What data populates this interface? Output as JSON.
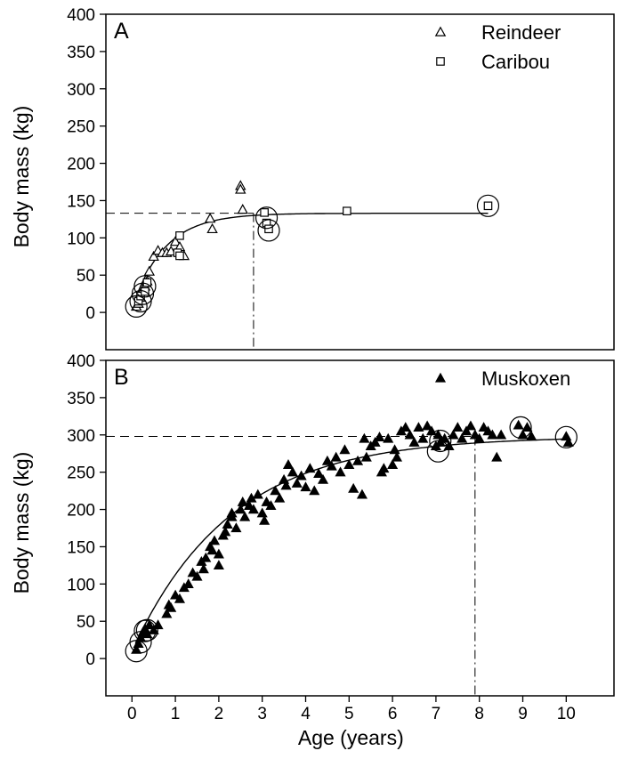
{
  "figure": {
    "background": "#ffffff",
    "ink": "#000000"
  },
  "chart_data": [
    {
      "panel_label": "A",
      "type": "scatter",
      "ylabel": "Body mass (kg)",
      "xlim": [
        -0.6,
        11.1
      ],
      "ylim": [
        -50,
        400
      ],
      "yticks": [
        0,
        50,
        100,
        150,
        200,
        250,
        300,
        350,
        400
      ],
      "legend_position": "top-right",
      "legend": [
        {
          "label": "Reindeer",
          "marker": "triangle-open"
        },
        {
          "label": "Caribou",
          "marker": "square-open"
        }
      ],
      "series": [
        {
          "name": "Reindeer",
          "marker": "triangle-open",
          "points": [
            [
              0.1,
              8
            ],
            [
              0.15,
              12
            ],
            [
              0.2,
              20
            ],
            [
              0.25,
              30
            ],
            [
              0.3,
              35
            ],
            [
              0.35,
              42
            ],
            [
              0.4,
              55
            ],
            [
              0.5,
              75
            ],
            [
              0.6,
              83
            ],
            [
              0.7,
              80
            ],
            [
              0.8,
              80
            ],
            [
              0.9,
              82
            ],
            [
              1.0,
              95
            ],
            [
              1.1,
              88
            ],
            [
              1.2,
              76
            ],
            [
              1.8,
              126
            ],
            [
              1.85,
              112
            ],
            [
              2.5,
              170
            ],
            [
              2.5,
              165
            ],
            [
              2.55,
              138
            ]
          ]
        },
        {
          "name": "Caribou",
          "marker": "square-open",
          "points": [
            [
              0.15,
              15
            ],
            [
              0.2,
              22
            ],
            [
              0.3,
              28
            ],
            [
              0.35,
              40
            ],
            [
              1.05,
              80
            ],
            [
              1.1,
              76
            ],
            [
              1.1,
              103
            ],
            [
              3.05,
              134
            ],
            [
              3.1,
              120
            ],
            [
              3.15,
              112
            ],
            [
              4.95,
              136
            ],
            [
              8.2,
              143
            ]
          ]
        }
      ],
      "circled_points": [
        [
          0.1,
          8
        ],
        [
          0.2,
          15
        ],
        [
          0.25,
          25
        ],
        [
          0.3,
          35
        ],
        [
          3.1,
          127
        ],
        [
          3.15,
          110
        ],
        [
          8.2,
          143
        ]
      ],
      "growth_curve": {
        "asymptote": 133,
        "rate": 1.35,
        "y0": 5
      },
      "reference_lines": {
        "asymptote_y": 133,
        "age_x": 2.8
      }
    },
    {
      "panel_label": "B",
      "type": "scatter",
      "xlabel": "Age (years)",
      "ylabel": "Body mass (kg)",
      "xlim": [
        -0.6,
        11.1
      ],
      "ylim": [
        -50,
        400
      ],
      "xticks": [
        0,
        1,
        2,
        3,
        4,
        5,
        6,
        7,
        8,
        9,
        10
      ],
      "yticks": [
        0,
        50,
        100,
        150,
        200,
        250,
        300,
        350,
        400
      ],
      "legend_position": "top-right",
      "legend": [
        {
          "label": "Muskoxen",
          "marker": "triangle-filled"
        }
      ],
      "series": [
        {
          "name": "Muskoxen",
          "marker": "triangle-filled",
          "points": [
            [
              0.1,
              12
            ],
            [
              0.15,
              20
            ],
            [
              0.2,
              28
            ],
            [
              0.25,
              35
            ],
            [
              0.3,
              40
            ],
            [
              0.35,
              33
            ],
            [
              0.4,
              45
            ],
            [
              0.5,
              38
            ],
            [
              0.6,
              45
            ],
            [
              0.8,
              60
            ],
            [
              0.85,
              72
            ],
            [
              0.9,
              68
            ],
            [
              1.0,
              85
            ],
            [
              1.1,
              80
            ],
            [
              1.2,
              95
            ],
            [
              1.3,
              100
            ],
            [
              1.4,
              115
            ],
            [
              1.5,
              110
            ],
            [
              1.6,
              130
            ],
            [
              1.65,
              120
            ],
            [
              1.7,
              135
            ],
            [
              1.8,
              150
            ],
            [
              1.85,
              145
            ],
            [
              1.9,
              158
            ],
            [
              2.0,
              140
            ],
            [
              2.0,
              125
            ],
            [
              2.1,
              165
            ],
            [
              2.15,
              170
            ],
            [
              2.2,
              180
            ],
            [
              2.3,
              190
            ],
            [
              2.3,
              195
            ],
            [
              2.4,
              175
            ],
            [
              2.5,
              200
            ],
            [
              2.55,
              210
            ],
            [
              2.6,
              190
            ],
            [
              2.7,
              205
            ],
            [
              2.75,
              215
            ],
            [
              2.8,
              200
            ],
            [
              2.9,
              220
            ],
            [
              3.0,
              195
            ],
            [
              3.05,
              185
            ],
            [
              3.1,
              210
            ],
            [
              3.2,
              205
            ],
            [
              3.3,
              225
            ],
            [
              3.4,
              215
            ],
            [
              3.5,
              240
            ],
            [
              3.55,
              232
            ],
            [
              3.6,
              260
            ],
            [
              3.7,
              250
            ],
            [
              3.8,
              235
            ],
            [
              3.9,
              245
            ],
            [
              4.0,
              230
            ],
            [
              4.1,
              255
            ],
            [
              4.2,
              225
            ],
            [
              4.3,
              248
            ],
            [
              4.4,
              240
            ],
            [
              4.5,
              265
            ],
            [
              4.6,
              258
            ],
            [
              4.7,
              270
            ],
            [
              4.8,
              250
            ],
            [
              4.9,
              280
            ],
            [
              5.0,
              260
            ],
            [
              5.1,
              228
            ],
            [
              5.2,
              265
            ],
            [
              5.3,
              220
            ],
            [
              5.35,
              295
            ],
            [
              5.4,
              270
            ],
            [
              5.5,
              285
            ],
            [
              5.6,
              290
            ],
            [
              5.7,
              297
            ],
            [
              5.75,
              250
            ],
            [
              5.8,
              255
            ],
            [
              5.9,
              295
            ],
            [
              6.0,
              260
            ],
            [
              6.05,
              280
            ],
            [
              6.1,
              270
            ],
            [
              6.2,
              305
            ],
            [
              6.3,
              310
            ],
            [
              6.4,
              300
            ],
            [
              6.5,
              290
            ],
            [
              6.6,
              310
            ],
            [
              6.7,
              295
            ],
            [
              6.8,
              312
            ],
            [
              6.9,
              305
            ],
            [
              7.0,
              285
            ],
            [
              7.05,
              300
            ],
            [
              7.1,
              290
            ],
            [
              7.2,
              295
            ],
            [
              7.3,
              285
            ],
            [
              7.4,
              300
            ],
            [
              7.5,
              310
            ],
            [
              7.6,
              295
            ],
            [
              7.7,
              305
            ],
            [
              7.8,
              312
            ],
            [
              7.9,
              300
            ],
            [
              8.0,
              295
            ],
            [
              8.1,
              310
            ],
            [
              8.2,
              305
            ],
            [
              8.3,
              300
            ],
            [
              8.4,
              270
            ],
            [
              8.5,
              300
            ],
            [
              8.9,
              313
            ],
            [
              9.0,
              300
            ],
            [
              9.1,
              310
            ],
            [
              9.2,
              298
            ],
            [
              10.0,
              298
            ],
            [
              10.05,
              290
            ]
          ]
        }
      ],
      "circled_points": [
        [
          0.1,
          10
        ],
        [
          0.2,
          22
        ],
        [
          0.3,
          37
        ],
        [
          0.35,
          38
        ],
        [
          7.05,
          278
        ],
        [
          7.1,
          292
        ],
        [
          8.95,
          310
        ],
        [
          10.0,
          297
        ]
      ],
      "growth_curve": {
        "asymptote": 298,
        "rate": 0.44,
        "y0": 10
      },
      "reference_lines": {
        "asymptote_y": 298,
        "age_x": 7.9
      }
    }
  ]
}
